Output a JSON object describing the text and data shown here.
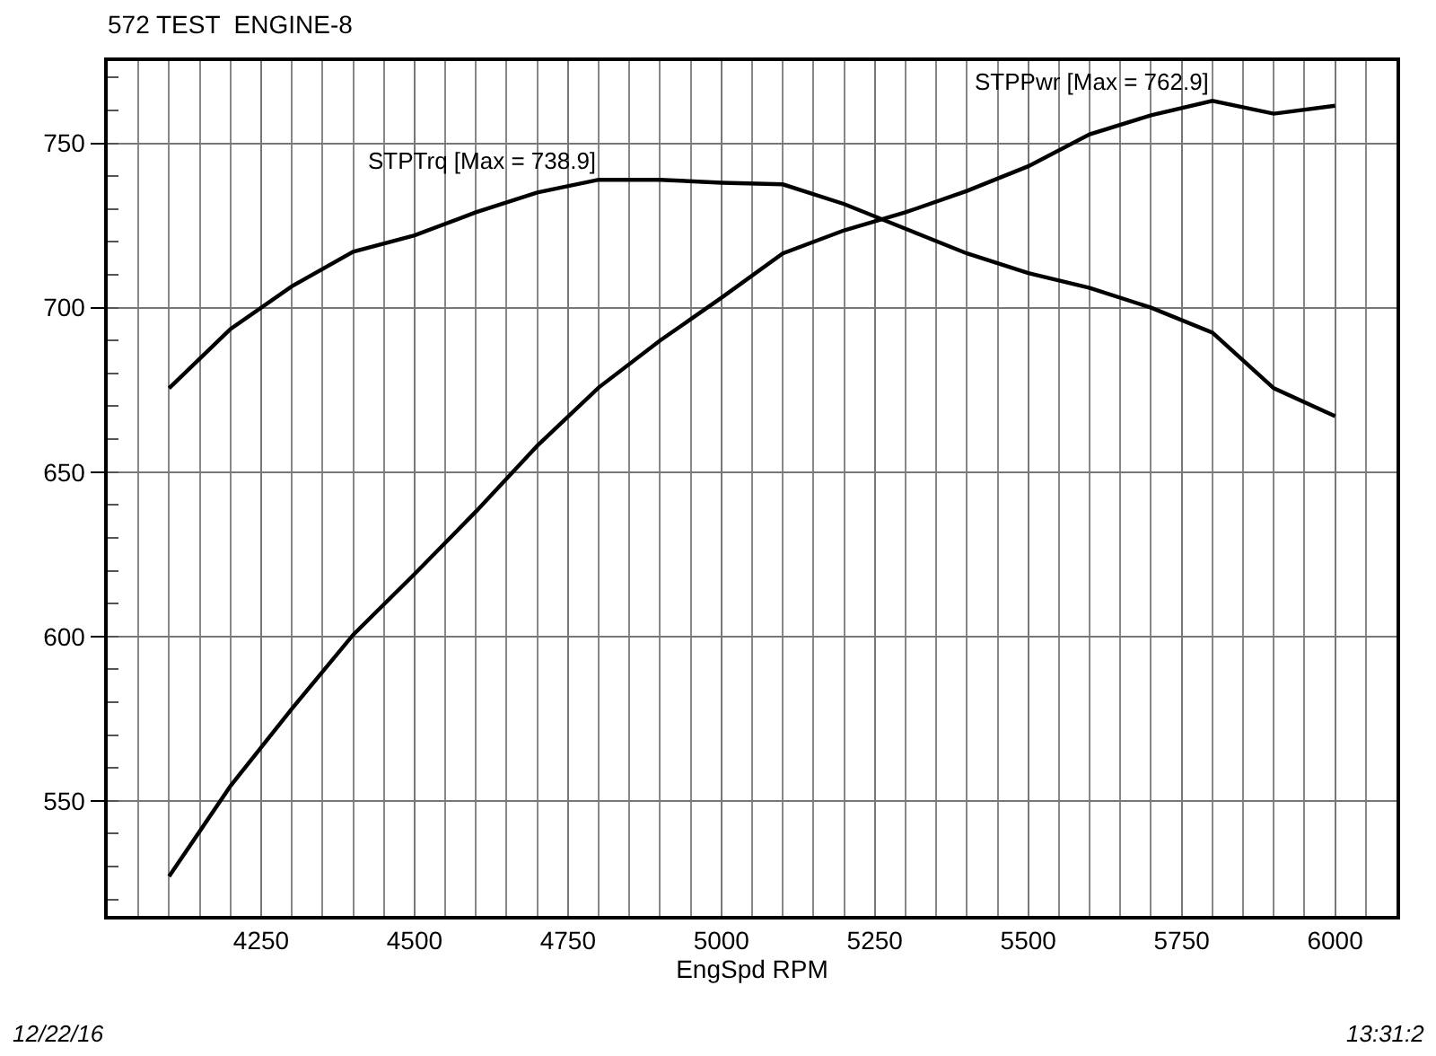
{
  "chart_data": {
    "type": "line",
    "title": "572 TEST  ENGINE-8",
    "xlabel": "EngSpd RPM",
    "x": [
      4100,
      4200,
      4300,
      4400,
      4500,
      4600,
      4700,
      4800,
      4900,
      5000,
      5100,
      5200,
      5300,
      5400,
      5500,
      5600,
      5700,
      5800,
      5900,
      6000
    ],
    "series": [
      {
        "name": "STPTrq [Max = 738.9]",
        "color": "#000000",
        "values": [
          675.5,
          693.5,
          706.5,
          717,
          722,
          729,
          735,
          738.9,
          738.9,
          738,
          737.5,
          731.5,
          724,
          716.5,
          710.5,
          706,
          700,
          692.4,
          675.5,
          667
        ]
      },
      {
        "name": "STPPwr [Max = 762.9]",
        "color": "#000000",
        "values": [
          527,
          554.5,
          578,
          600.5,
          619,
          638,
          658,
          675.7,
          690,
          703,
          716.5,
          723.5,
          729,
          735.5,
          743,
          752.7,
          758.5,
          762.9,
          759,
          761.4
        ]
      }
    ],
    "xlim": [
      4000,
      6100
    ],
    "xticks": [
      4250,
      4500,
      4750,
      5000,
      5250,
      5500,
      5750,
      6000
    ],
    "ylim": [
      515,
      775
    ],
    "yticks": [
      550,
      600,
      650,
      700,
      750
    ],
    "grid": true,
    "legend": false,
    "marker": "none",
    "line_style": "solid",
    "annotations": [
      "12/22/16",
      "13:31:2"
    ]
  }
}
